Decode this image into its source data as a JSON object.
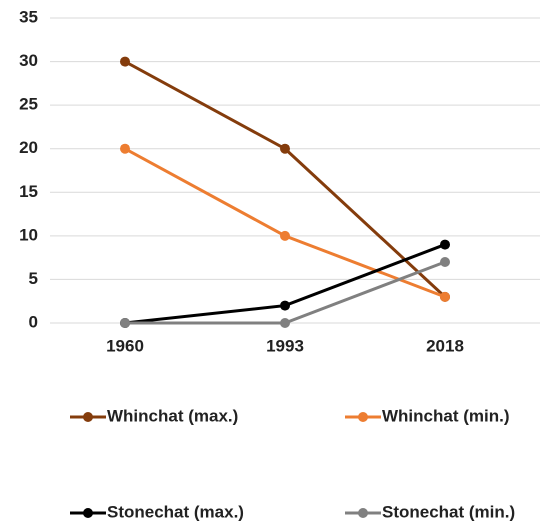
{
  "chart_data": {
    "type": "line",
    "categories": [
      "1960",
      "1993",
      "2018"
    ],
    "series": [
      {
        "name": "Whinchat (max.)",
        "color": "#843c0c",
        "values": [
          30,
          20,
          3
        ]
      },
      {
        "name": "Whinchat (min.)",
        "color": "#ed7d31",
        "values": [
          20,
          10,
          3
        ]
      },
      {
        "name": "Stonechat (max.)",
        "color": "#000000",
        "values": [
          0,
          2,
          9
        ]
      },
      {
        "name": "Stonechat (min.)",
        "color": "#808080",
        "values": [
          0,
          0,
          7
        ]
      }
    ],
    "ylim": [
      0,
      35
    ],
    "yticks": [
      0,
      5,
      10,
      15,
      20,
      25,
      30,
      35
    ],
    "grid": true
  }
}
